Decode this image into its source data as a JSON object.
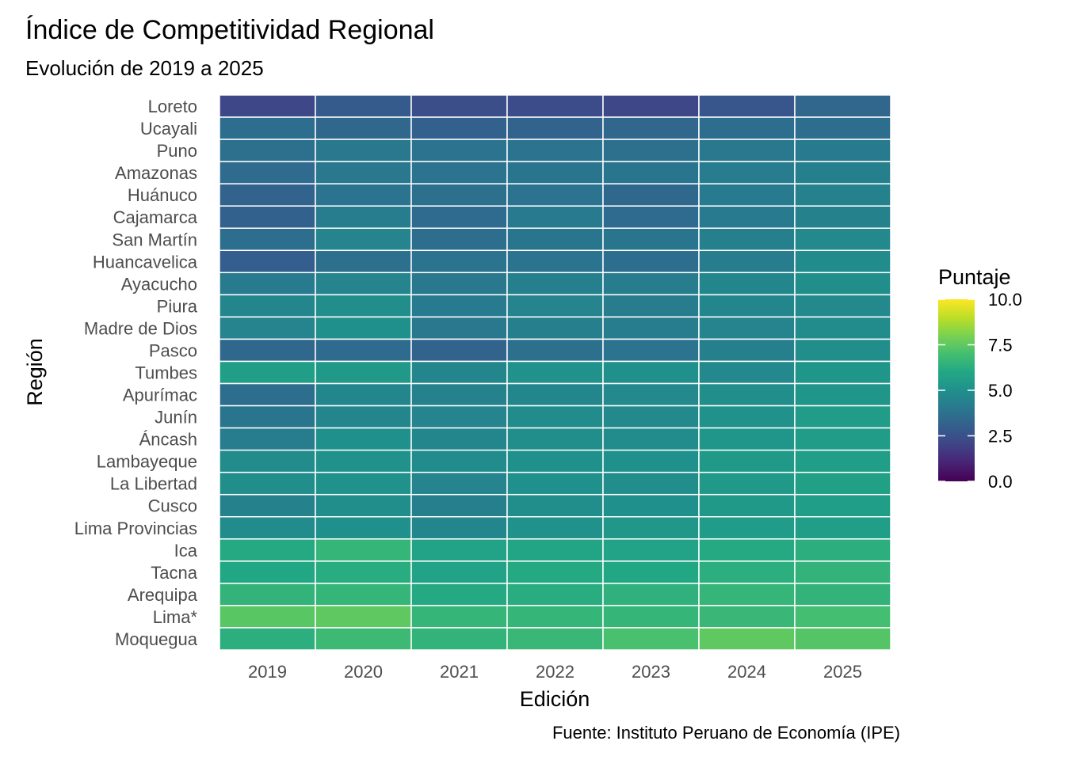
{
  "chart_data": {
    "type": "heatmap",
    "title": "Índice de Competitividad Regional",
    "subtitle": "Evolución de 2019 a 2025",
    "xlabel": "Edición",
    "ylabel": "Región",
    "caption": "Fuente: Instituto Peruano de Economía (IPE)",
    "x": [
      "2019",
      "2020",
      "2021",
      "2022",
      "2023",
      "2024",
      "2025"
    ],
    "y": [
      "Loreto",
      "Ucayali",
      "Puno",
      "Amazonas",
      "Huánuco",
      "Cajamarca",
      "San Martín",
      "Huancavelica",
      "Ayacucho",
      "Piura",
      "Madre de Dios",
      "Pasco",
      "Tumbes",
      "Apurímac",
      "Junín",
      "Áncash",
      "Lambayeque",
      "La Libertad",
      "Cusco",
      "Lima Provincias",
      "Ica",
      "Tacna",
      "Arequipa",
      "Lima*",
      "Moquegua"
    ],
    "values": [
      [
        2.2,
        2.9,
        2.4,
        2.3,
        2.2,
        2.7,
        3.3
      ],
      [
        3.6,
        3.4,
        3.1,
        3.2,
        3.3,
        3.6,
        3.6
      ],
      [
        3.7,
        4.0,
        3.8,
        3.8,
        3.7,
        4.0,
        4.1
      ],
      [
        3.5,
        4.0,
        3.8,
        3.9,
        3.9,
        4.2,
        4.3
      ],
      [
        3.2,
        3.8,
        3.7,
        3.8,
        3.4,
        4.1,
        4.4
      ],
      [
        3.1,
        4.2,
        3.5,
        4.1,
        3.5,
        4.1,
        4.4
      ],
      [
        3.6,
        4.5,
        3.6,
        3.9,
        3.9,
        4.3,
        4.7
      ],
      [
        3.0,
        3.7,
        3.8,
        3.8,
        3.6,
        4.2,
        4.8
      ],
      [
        4.1,
        4.5,
        4.0,
        4.3,
        4.2,
        4.6,
        4.9
      ],
      [
        4.6,
        4.9,
        4.1,
        4.5,
        4.2,
        4.6,
        4.7
      ],
      [
        4.5,
        5.0,
        4.0,
        4.3,
        4.2,
        4.5,
        4.8
      ],
      [
        3.4,
        3.5,
        3.2,
        3.7,
        3.8,
        4.3,
        4.9
      ],
      [
        5.6,
        5.4,
        4.6,
        5.1,
        5.0,
        4.7,
        5.2
      ],
      [
        3.6,
        4.6,
        4.4,
        4.6,
        4.7,
        4.9,
        5.2
      ],
      [
        3.9,
        4.6,
        4.5,
        4.8,
        4.7,
        5.1,
        5.5
      ],
      [
        4.2,
        5.0,
        4.6,
        4.9,
        4.8,
        5.2,
        5.5
      ],
      [
        4.8,
        5.1,
        4.8,
        5.0,
        5.0,
        5.4,
        5.6
      ],
      [
        4.9,
        5.1,
        4.5,
        5.0,
        4.9,
        5.4,
        5.7
      ],
      [
        4.4,
        4.9,
        4.3,
        4.9,
        5.0,
        5.4,
        5.6
      ],
      [
        4.8,
        5.0,
        4.6,
        5.1,
        5.3,
        5.5,
        5.6
      ],
      [
        6.1,
        6.6,
        5.8,
        5.9,
        5.8,
        6.1,
        6.3
      ],
      [
        6.0,
        6.2,
        5.8,
        6.1,
        6.0,
        6.3,
        6.5
      ],
      [
        6.5,
        6.6,
        6.1,
        6.2,
        6.4,
        6.6,
        6.5
      ],
      [
        7.4,
        7.5,
        6.6,
        6.6,
        6.6,
        6.7,
        7.0
      ],
      [
        6.3,
        6.8,
        6.5,
        6.7,
        7.1,
        7.5,
        7.3
      ]
    ],
    "legend": {
      "title": "Puntaje",
      "min": 0,
      "max": 10,
      "ticks": [
        "0.0",
        "2.5",
        "5.0",
        "7.5",
        "10.0"
      ],
      "colormap": "viridis",
      "placement": "right"
    },
    "grid": false
  }
}
